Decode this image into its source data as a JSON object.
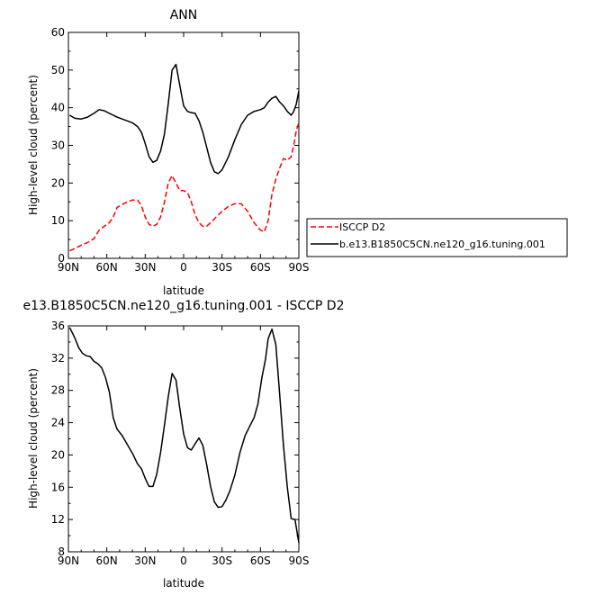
{
  "chart_data": [
    {
      "type": "line",
      "title": "ANN",
      "xlabel": "latitude",
      "ylabel": "High-level cloud (percent)",
      "xlim": [
        90,
        -90
      ],
      "ylim": [
        0,
        60
      ],
      "x_ticks": [
        90,
        60,
        30,
        0,
        -30,
        -60,
        -90
      ],
      "x_tick_labels": [
        "90N",
        "60N",
        "30N",
        "0",
        "30S",
        "60S",
        "90S"
      ],
      "y_ticks": [
        0,
        10,
        20,
        30,
        40,
        50,
        60
      ],
      "y_tick_labels": [
        "0",
        "10",
        "20",
        "30",
        "40",
        "50",
        "60"
      ],
      "grid": false,
      "legend_position": "right",
      "series": [
        {
          "name": "ISCCP D2",
          "color": "#ff0000",
          "dash": "dashed",
          "x": [
            89,
            85,
            80,
            75,
            70,
            66,
            62,
            58,
            55,
            52,
            48,
            44,
            40,
            36,
            33,
            30,
            27,
            24,
            21,
            18,
            15,
            12,
            9,
            6,
            3,
            0,
            -3,
            -6,
            -9,
            -12,
            -15,
            -18,
            -21,
            -24,
            -27,
            -30,
            -35,
            -40,
            -45,
            -50,
            -55,
            -60,
            -63,
            -66,
            -69,
            -72,
            -75,
            -78,
            -81,
            -84,
            -86,
            -88,
            -90
          ],
          "y": [
            2,
            2.6,
            3.5,
            4.2,
            5.2,
            7.5,
            8.5,
            9.5,
            11,
            13.5,
            14.3,
            15,
            15.5,
            15.5,
            14,
            11,
            9,
            8.5,
            9,
            11,
            15,
            20,
            22,
            20,
            18,
            18,
            17.5,
            15,
            11.5,
            9.5,
            8.5,
            8.5,
            9.5,
            10.5,
            11.5,
            12.5,
            13.8,
            14.5,
            14.5,
            12.5,
            9.5,
            7.5,
            7,
            10,
            17,
            21,
            24,
            26.5,
            26,
            27,
            30,
            34,
            36
          ]
        },
        {
          "name": "b.e13.B1850C5CN.ne120_g16.tuning.001",
          "color": "#000000",
          "dash": "solid",
          "x": [
            89,
            85,
            80,
            75,
            70,
            66,
            62,
            58,
            55,
            52,
            48,
            44,
            40,
            36,
            33,
            30,
            27,
            24,
            21,
            18,
            15,
            12,
            9,
            6,
            3,
            0,
            -3,
            -6,
            -9,
            -12,
            -15,
            -18,
            -21,
            -24,
            -27,
            -30,
            -35,
            -40,
            -45,
            -50,
            -55,
            -60,
            -63,
            -66,
            -69,
            -72,
            -75,
            -78,
            -81,
            -84,
            -86,
            -88,
            -90
          ],
          "y": [
            38,
            37.2,
            37,
            37.5,
            38.5,
            39.5,
            39.2,
            38.5,
            38,
            37.5,
            37,
            36.5,
            36,
            35,
            33.5,
            30.5,
            27,
            25.5,
            26,
            28.5,
            33,
            41,
            50,
            51.5,
            46,
            40.5,
            39,
            38.7,
            38.5,
            36.5,
            33.5,
            29.5,
            25.5,
            23,
            22.5,
            23.5,
            27,
            31.5,
            35.5,
            38,
            39,
            39.5,
            40,
            41.5,
            42.5,
            43,
            41.5,
            40.5,
            39,
            38,
            39,
            41,
            44.5
          ]
        }
      ]
    },
    {
      "type": "line",
      "title": "e13.B1850C5CN.ne120_g16.tuning.001 - ISCCP D2",
      "xlabel": "latitude",
      "ylabel": "High-level cloud (percent)",
      "xlim": [
        90,
        -90
      ],
      "ylim": [
        8,
        36
      ],
      "x_ticks": [
        90,
        60,
        30,
        0,
        -30,
        -60,
        -90
      ],
      "x_tick_labels": [
        "90N",
        "60N",
        "30N",
        "0",
        "30S",
        "60S",
        "90S"
      ],
      "y_ticks": [
        8,
        12,
        16,
        20,
        24,
        28,
        32,
        36
      ],
      "y_tick_labels": [
        "8",
        "12",
        "16",
        "20",
        "24",
        "28",
        "32",
        "36"
      ],
      "grid": false,
      "series": [
        {
          "color": "#000000",
          "dash": "solid",
          "x": [
            89,
            85,
            82,
            79,
            76,
            73,
            70,
            67,
            64,
            61,
            58,
            55,
            52,
            48,
            44,
            40,
            36,
            33,
            30,
            27,
            24,
            21,
            18,
            15,
            12,
            9,
            6,
            3,
            0,
            -3,
            -6,
            -9,
            -12,
            -15,
            -18,
            -21,
            -24,
            -27,
            -30,
            -33,
            -36,
            -40,
            -44,
            -48,
            -52,
            -55,
            -58,
            -61,
            -64,
            -66,
            -69,
            -72,
            -75,
            -78,
            -81,
            -84,
            -87,
            -90
          ],
          "y": [
            35.8,
            34.5,
            33.3,
            32.6,
            32.3,
            32.2,
            31.6,
            31.3,
            30.8,
            29.6,
            27.8,
            24.6,
            23.2,
            22.4,
            21.3,
            20.2,
            18.9,
            18.3,
            17.1,
            16.1,
            16.1,
            17.6,
            20.3,
            23.7,
            27.2,
            30.1,
            29.3,
            25.8,
            22.6,
            20.9,
            20.6,
            21.4,
            22.1,
            21.2,
            18.8,
            16.1,
            14.2,
            13.5,
            13.6,
            14.4,
            15.5,
            17.5,
            20.3,
            22.4,
            23.7,
            24.6,
            26.3,
            29.5,
            31.9,
            34.4,
            35.6,
            33.7,
            27.5,
            21.2,
            16.0,
            12.1,
            12.0,
            9.1
          ]
        }
      ]
    }
  ]
}
